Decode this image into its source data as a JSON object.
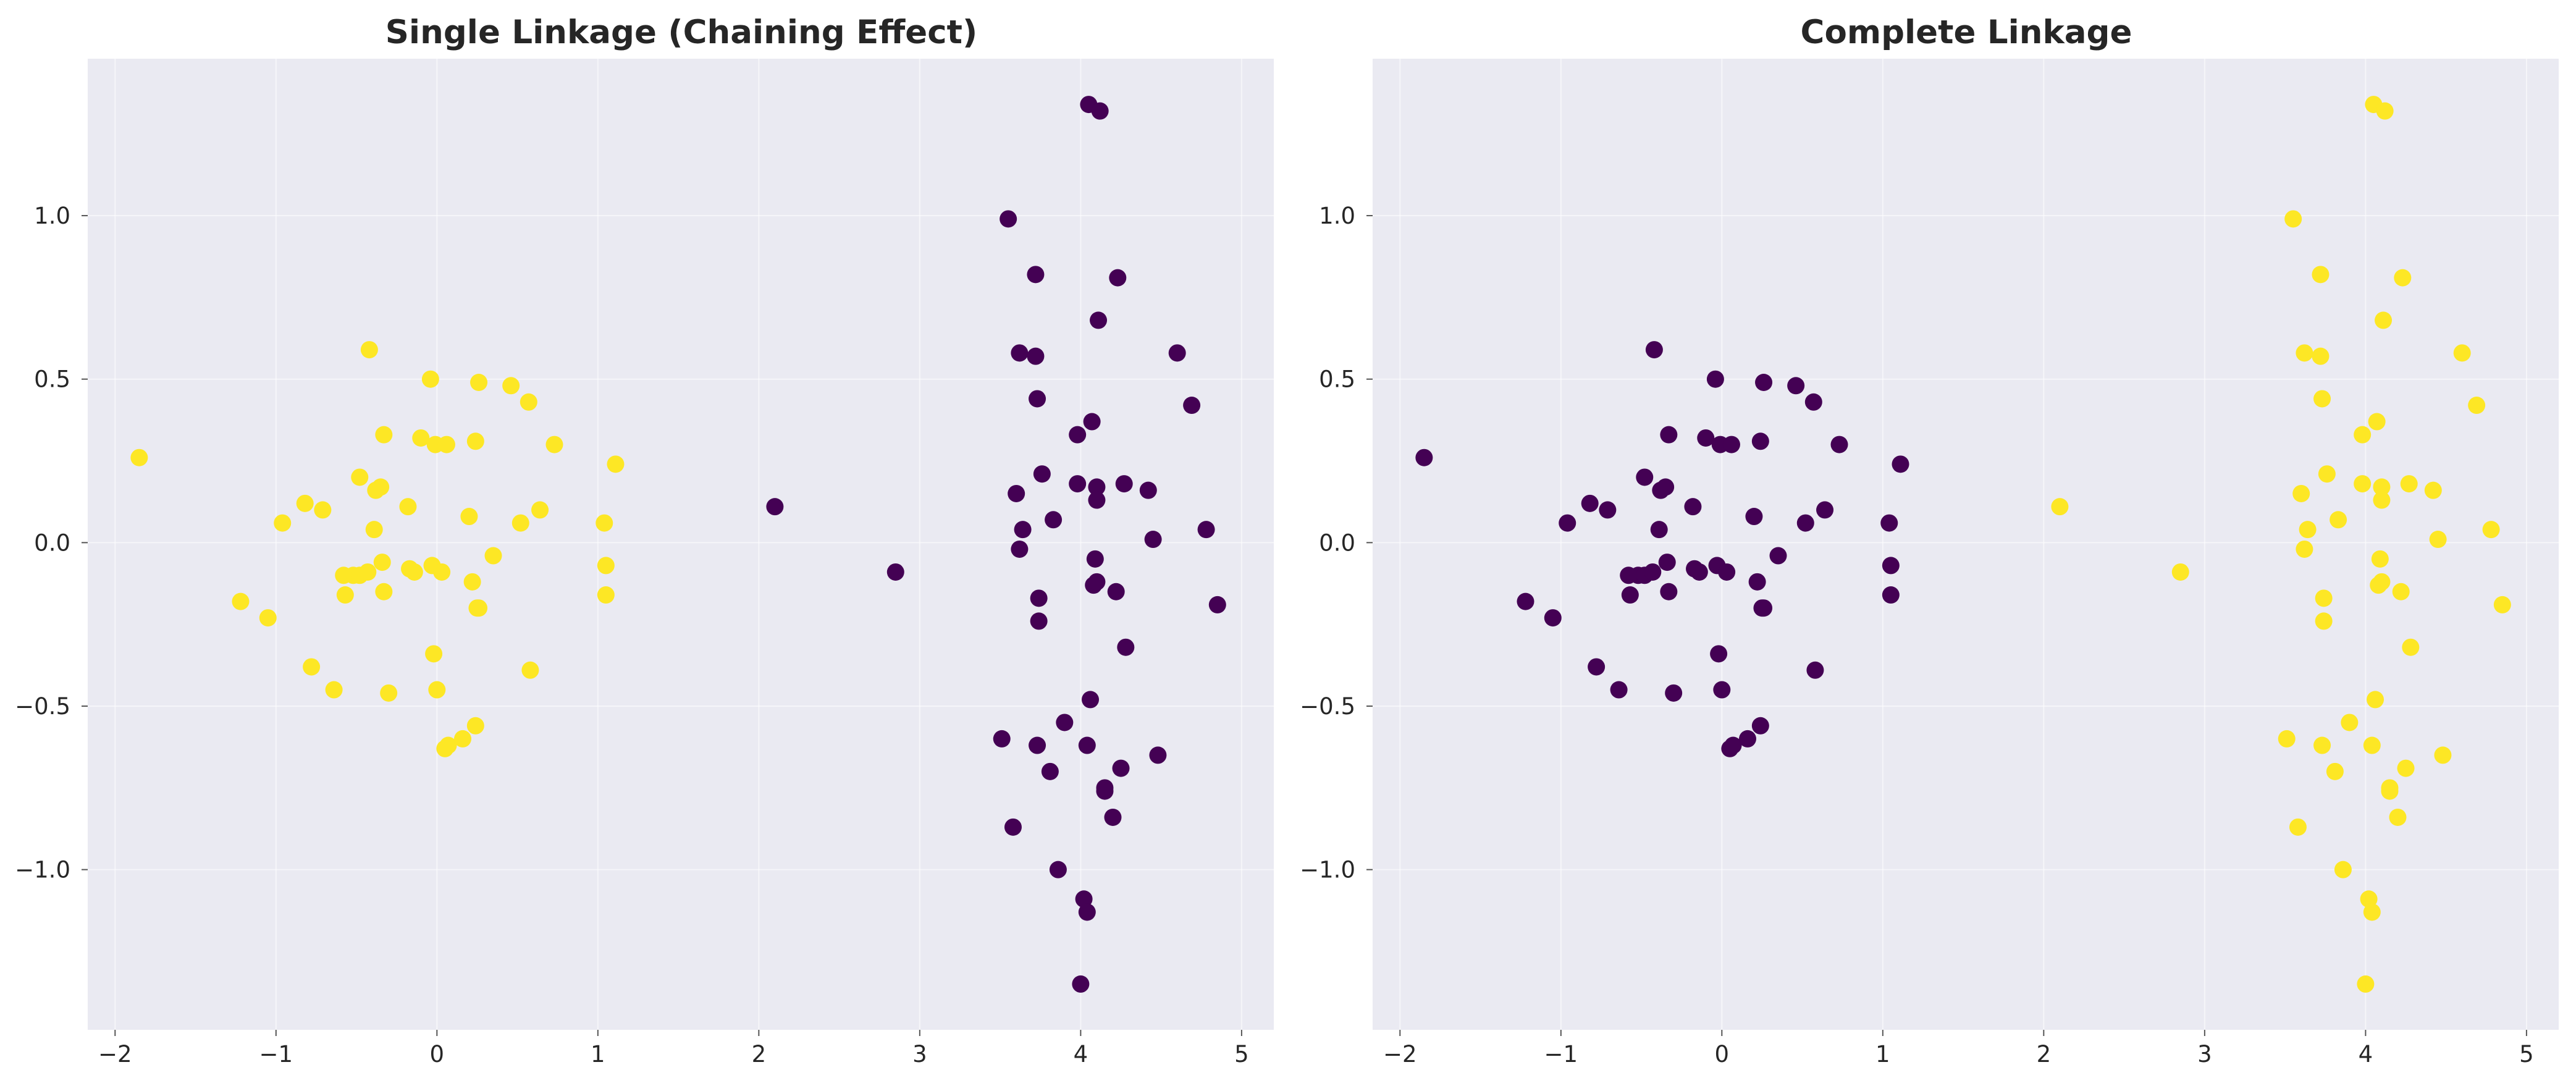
{
  "chart_data": [
    {
      "type": "scatter",
      "title": "Single Linkage (Chaining Effect)",
      "xlabel": "",
      "ylabel": "",
      "xlim": [
        -2.17,
        5.2
      ],
      "ylim": [
        -1.49,
        1.48
      ],
      "xticks": [
        -2,
        -1,
        0,
        1,
        2,
        3,
        4,
        5
      ],
      "yticks": [
        -1.0,
        -0.5,
        0.0,
        0.5,
        1.0
      ],
      "xtick_labels": [
        "−2",
        "−1",
        "0",
        "1",
        "2",
        "3",
        "4",
        "5"
      ],
      "ytick_labels": [
        "−1.0",
        "−0.5",
        "0.0",
        "0.5",
        "1.0"
      ],
      "grid": true,
      "colormap": "viridis",
      "series": [
        {
          "cluster": "A",
          "color": "#fde725",
          "x": [
            -1.85,
            -1.22,
            -1.05,
            -0.96,
            -0.82,
            -0.78,
            -0.71,
            -0.64,
            -0.58,
            -0.57,
            -0.52,
            -0.48,
            -0.48,
            -0.43,
            -0.42,
            -0.39,
            -0.38,
            -0.35,
            -0.34,
            -0.33,
            -0.33,
            -0.3,
            -0.18,
            -0.17,
            -0.14,
            -0.1,
            -0.04,
            -0.03,
            -0.02,
            -0.01,
            0,
            0.03,
            0.05,
            0.06,
            0.07,
            0.16,
            0.2,
            0.22,
            0.24,
            0.24,
            0.25,
            0.26,
            0.26,
            0.35,
            0.46,
            0.52,
            0.57,
            0.58,
            0.64,
            0.73,
            1.04,
            1.05,
            1.05,
            1.11
          ],
          "y": [
            0.26,
            -0.18,
            -0.23,
            0.06,
            0.12,
            -0.38,
            0.1,
            -0.45,
            -0.1,
            -0.16,
            -0.1,
            0.2,
            -0.1,
            -0.09,
            0.59,
            0.04,
            0.16,
            0.17,
            -0.06,
            0.33,
            -0.15,
            -0.46,
            0.11,
            -0.08,
            -0.09,
            0.32,
            0.5,
            -0.07,
            -0.34,
            0.3,
            -0.45,
            -0.09,
            -0.63,
            0.3,
            -0.62,
            -0.6,
            0.08,
            -0.12,
            0.31,
            -0.56,
            -0.2,
            0.49,
            -0.2,
            -0.04,
            0.48,
            0.06,
            0.43,
            -0.39,
            0.1,
            0.3,
            0.06,
            -0.07,
            -0.16,
            0.24
          ]
        },
        {
          "cluster": "B",
          "color": "#440154",
          "x": [
            2.1,
            2.85,
            3.51,
            3.55,
            3.58,
            3.6,
            3.62,
            3.62,
            3.64,
            3.72,
            3.72,
            3.73,
            3.73,
            3.74,
            3.74,
            3.76,
            3.81,
            3.83,
            3.86,
            3.9,
            3.98,
            3.98,
            4.0,
            4.02,
            4.04,
            4.04,
            4.05,
            4.06,
            4.07,
            4.08,
            4.09,
            4.1,
            4.1,
            4.1,
            4.11,
            4.12,
            4.15,
            4.15,
            4.2,
            4.22,
            4.23,
            4.25,
            4.27,
            4.28,
            4.42,
            4.45,
            4.48,
            4.6,
            4.69,
            4.78,
            4.85
          ],
          "y": [
            0.11,
            -0.09,
            -0.6,
            0.99,
            -0.87,
            0.15,
            0.58,
            -0.02,
            0.04,
            0.57,
            0.82,
            0.44,
            -0.62,
            -0.24,
            -0.17,
            0.21,
            -0.7,
            0.07,
            -1.0,
            -0.55,
            0.33,
            0.18,
            -1.35,
            -1.09,
            -0.62,
            -1.13,
            1.34,
            -0.48,
            0.37,
            -0.13,
            -0.05,
            0.17,
            0.13,
            -0.12,
            0.68,
            1.32,
            -0.76,
            -0.75,
            -0.84,
            -0.15,
            0.81,
            -0.69,
            0.18,
            -0.32,
            0.16,
            0.01,
            -0.65,
            0.58,
            0.42,
            0.04,
            -0.19
          ]
        }
      ]
    },
    {
      "type": "scatter",
      "title": "Complete Linkage",
      "xlabel": "",
      "ylabel": "",
      "xlim": [
        -2.17,
        5.2
      ],
      "ylim": [
        -1.49,
        1.48
      ],
      "xticks": [
        -2,
        -1,
        0,
        1,
        2,
        3,
        4,
        5
      ],
      "yticks": [
        -1.0,
        -0.5,
        0.0,
        0.5,
        1.0
      ],
      "xtick_labels": [
        "−2",
        "−1",
        "0",
        "1",
        "2",
        "3",
        "4",
        "5"
      ],
      "ytick_labels": [
        "−1.0",
        "−0.5",
        "0.0",
        "0.5",
        "1.0"
      ],
      "grid": true,
      "colormap": "viridis",
      "series": [
        {
          "cluster": "A",
          "color": "#440154",
          "x": [
            -1.85,
            -1.22,
            -1.05,
            -0.96,
            -0.82,
            -0.78,
            -0.71,
            -0.64,
            -0.58,
            -0.57,
            -0.52,
            -0.48,
            -0.48,
            -0.43,
            -0.42,
            -0.39,
            -0.38,
            -0.35,
            -0.34,
            -0.33,
            -0.33,
            -0.3,
            -0.18,
            -0.17,
            -0.14,
            -0.1,
            -0.04,
            -0.03,
            -0.02,
            -0.01,
            0,
            0.03,
            0.05,
            0.06,
            0.07,
            0.16,
            0.2,
            0.22,
            0.24,
            0.24,
            0.25,
            0.26,
            0.26,
            0.35,
            0.46,
            0.52,
            0.57,
            0.58,
            0.64,
            0.73,
            1.04,
            1.05,
            1.05,
            1.11
          ],
          "y": [
            0.26,
            -0.18,
            -0.23,
            0.06,
            0.12,
            -0.38,
            0.1,
            -0.45,
            -0.1,
            -0.16,
            -0.1,
            0.2,
            -0.1,
            -0.09,
            0.59,
            0.04,
            0.16,
            0.17,
            -0.06,
            0.33,
            -0.15,
            -0.46,
            0.11,
            -0.08,
            -0.09,
            0.32,
            0.5,
            -0.07,
            -0.34,
            0.3,
            -0.45,
            -0.09,
            -0.63,
            0.3,
            -0.62,
            -0.6,
            0.08,
            -0.12,
            0.31,
            -0.56,
            -0.2,
            0.49,
            -0.2,
            -0.04,
            0.48,
            0.06,
            0.43,
            -0.39,
            0.1,
            0.3,
            0.06,
            -0.07,
            -0.16,
            0.24
          ]
        },
        {
          "cluster": "B",
          "color": "#fde725",
          "x": [
            2.1,
            2.85,
            3.51,
            3.55,
            3.58,
            3.6,
            3.62,
            3.62,
            3.64,
            3.72,
            3.72,
            3.73,
            3.73,
            3.74,
            3.74,
            3.76,
            3.81,
            3.83,
            3.86,
            3.9,
            3.98,
            3.98,
            4.0,
            4.02,
            4.04,
            4.04,
            4.05,
            4.06,
            4.07,
            4.08,
            4.09,
            4.1,
            4.1,
            4.1,
            4.11,
            4.12,
            4.15,
            4.15,
            4.2,
            4.22,
            4.23,
            4.25,
            4.27,
            4.28,
            4.42,
            4.45,
            4.48,
            4.6,
            4.69,
            4.78,
            4.85
          ],
          "y": [
            0.11,
            -0.09,
            -0.6,
            0.99,
            -0.87,
            0.15,
            0.58,
            -0.02,
            0.04,
            0.57,
            0.82,
            0.44,
            -0.62,
            -0.24,
            -0.17,
            0.21,
            -0.7,
            0.07,
            -1.0,
            -0.55,
            0.33,
            0.18,
            -1.35,
            -1.09,
            -0.62,
            -1.13,
            1.34,
            -0.48,
            0.37,
            -0.13,
            -0.05,
            0.17,
            0.13,
            -0.12,
            0.68,
            1.32,
            -0.76,
            -0.75,
            -0.84,
            -0.15,
            0.81,
            -0.69,
            0.18,
            -0.32,
            0.16,
            0.01,
            -0.65,
            0.58,
            0.42,
            0.04,
            -0.19
          ]
        }
      ]
    }
  ]
}
